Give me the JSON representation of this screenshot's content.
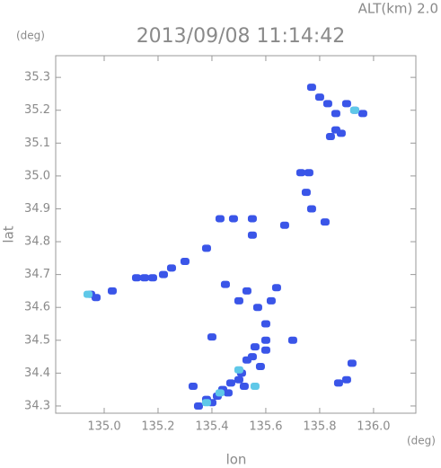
{
  "chart_data": {
    "type": "scatter",
    "title": "2013/09/08 11:14:42",
    "annotation": "ALT(km) 2.0",
    "ylabel_unit": "(deg)",
    "xlabel_unit": "(deg)",
    "xlabel": "lon",
    "ylabel": "lat",
    "xlim": [
      134.82,
      136.157
    ],
    "ylim": [
      34.278,
      35.366
    ],
    "xticks": [
      {
        "value": 135.0,
        "label": "135.0"
      },
      135.2,
      135.4,
      135.6,
      135.8,
      {
        "value": 136.0,
        "label": "136.0"
      }
    ],
    "yticks": [
      34.3,
      34.4,
      34.5,
      34.6,
      34.7,
      34.8,
      34.9,
      {
        "value": 35.0,
        "label": "35.0"
      },
      35.1,
      35.2,
      35.3
    ],
    "series": [
      {
        "color": "#3a55e8",
        "x": [
          135.77,
          135.8,
          135.83,
          135.86,
          135.9,
          135.93,
          135.96,
          135.88,
          135.86,
          135.84,
          135.73,
          135.76,
          135.75,
          135.77,
          135.82,
          135.48,
          135.43,
          135.55,
          135.67,
          135.55,
          134.95,
          134.97,
          135.03,
          135.12,
          135.15,
          135.18,
          135.22,
          135.25,
          135.3,
          135.38,
          135.45,
          135.53,
          135.5,
          135.57,
          135.62,
          135.64,
          135.6,
          135.6,
          135.56,
          135.53,
          135.55,
          135.51,
          135.5,
          135.47,
          135.44,
          135.42,
          135.38,
          135.35,
          135.33,
          135.4,
          135.46,
          135.52,
          135.58,
          135.6,
          135.4,
          135.7,
          135.92,
          135.9,
          135.87
        ],
        "y": [
          35.27,
          35.24,
          35.22,
          35.19,
          35.22,
          35.2,
          35.19,
          35.13,
          35.14,
          35.12,
          35.01,
          35.01,
          34.95,
          34.9,
          34.86,
          34.87,
          34.87,
          34.87,
          34.85,
          34.82,
          34.64,
          34.63,
          34.65,
          34.69,
          34.69,
          34.69,
          34.7,
          34.72,
          34.74,
          34.78,
          34.67,
          34.65,
          34.62,
          34.6,
          34.62,
          34.66,
          34.55,
          34.5,
          34.48,
          34.44,
          34.45,
          34.4,
          34.38,
          34.37,
          34.35,
          34.33,
          34.32,
          34.3,
          34.36,
          34.31,
          34.34,
          34.36,
          34.42,
          34.47,
          34.51,
          34.5,
          34.43,
          34.38,
          34.37
        ]
      },
      {
        "color": "#5fc8e8",
        "x": [
          134.94,
          135.38,
          135.43,
          135.5,
          135.56,
          135.93
        ],
        "y": [
          34.64,
          34.31,
          34.34,
          34.41,
          34.36,
          35.2
        ]
      }
    ]
  }
}
